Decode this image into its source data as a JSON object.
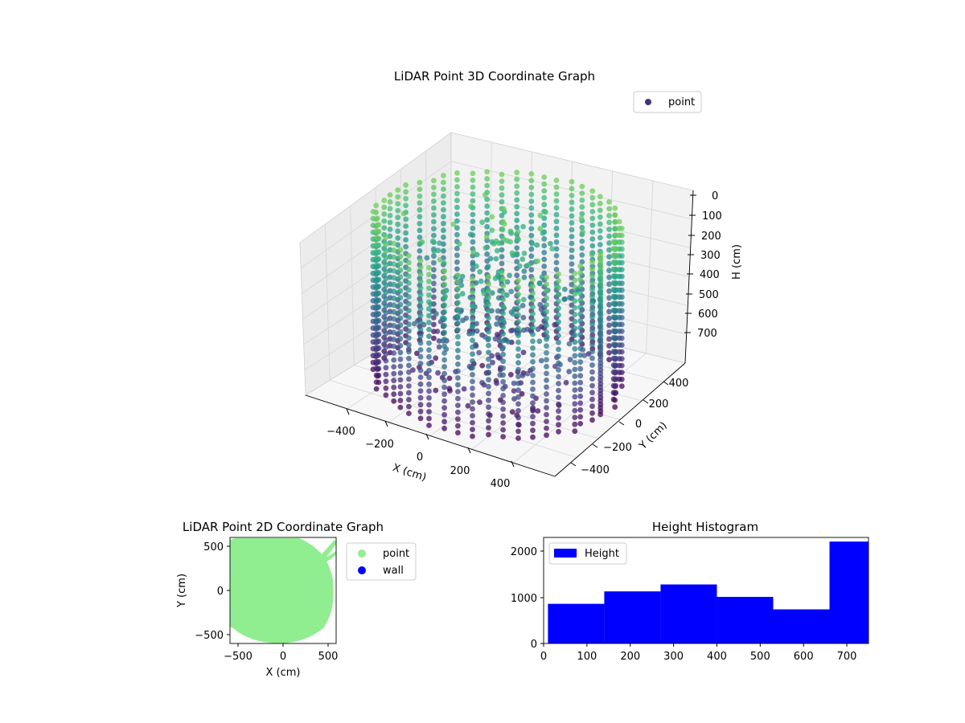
{
  "chart_data": [
    {
      "type": "scatter",
      "title": "LiDAR Point 3D Coordinate Graph",
      "xlabel": "X (cm)",
      "ylabel": "Y (cm)",
      "zlabel": "H (cm)",
      "xticks": [
        "−400",
        "−200",
        "0",
        "200",
        "400"
      ],
      "yticks": [
        "−400",
        "−200",
        "0",
        "200",
        "400"
      ],
      "zticks": [
        "0",
        "100",
        "200",
        "300",
        "400",
        "500",
        "600",
        "700"
      ],
      "xlim": [
        -560,
        560
      ],
      "ylim": [
        -560,
        560
      ],
      "zlim": [
        750,
        0
      ],
      "legend": [
        {
          "name": "point",
          "color": "#46327e"
        }
      ],
      "legend_position": "top-right",
      "colormap": "viridis",
      "grid": true
    },
    {
      "type": "scatter",
      "title": "LiDAR Point 2D Coordinate Graph",
      "xlabel": "X (cm)",
      "ylabel": "Y (cm)",
      "xticks": [
        "−500",
        "0",
        "500"
      ],
      "yticks": [
        "−500",
        "0",
        "500"
      ],
      "xlim": [
        -590,
        590
      ],
      "ylim": [
        -590,
        590
      ],
      "legend": [
        {
          "name": "point",
          "color": "#90ee90"
        },
        {
          "name": "wall",
          "color": "#0000ff"
        }
      ],
      "legend_position": "outside-right",
      "grid": false
    },
    {
      "type": "bar",
      "title": "Height Histogram",
      "xticks": [
        "0",
        "100",
        "200",
        "300",
        "400",
        "500",
        "600",
        "700"
      ],
      "yticks": [
        "0",
        "1000",
        "2000"
      ],
      "xlim": [
        0,
        750
      ],
      "ylim": [
        0,
        2300
      ],
      "bins": [
        {
          "x0": 10,
          "x1": 140,
          "value": 860
        },
        {
          "x0": 140,
          "x1": 270,
          "value": 1130
        },
        {
          "x0": 270,
          "x1": 400,
          "value": 1280
        },
        {
          "x0": 400,
          "x1": 530,
          "value": 1010
        },
        {
          "x0": 530,
          "x1": 660,
          "value": 740
        },
        {
          "x0": 660,
          "x1": 750,
          "value": 2210
        }
      ],
      "series": [
        {
          "name": "Height",
          "color": "#0000ff"
        }
      ],
      "legend_position": "top-left",
      "grid": false
    }
  ]
}
